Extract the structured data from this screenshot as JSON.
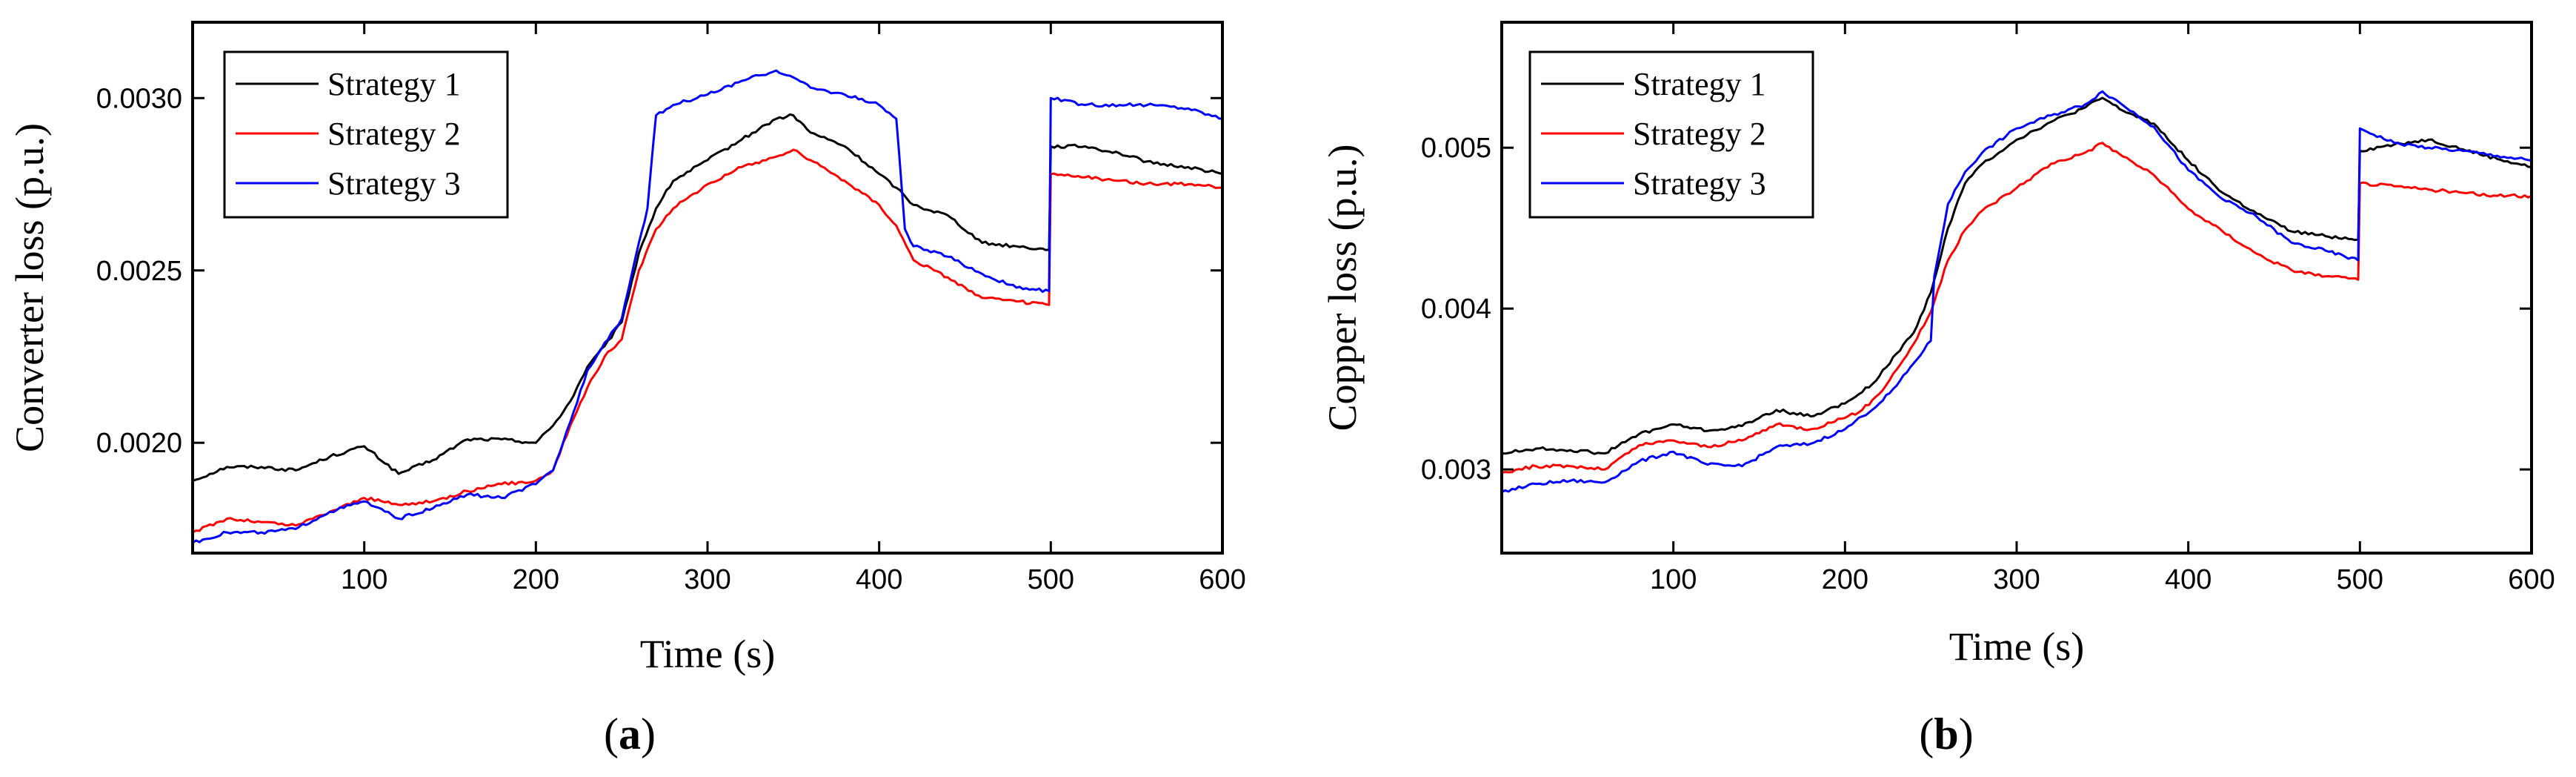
{
  "figure": {
    "panels": [
      {
        "id": "a",
        "label_open": "(",
        "label_letter": "a",
        "label_close": ")"
      },
      {
        "id": "b",
        "label_open": "(",
        "label_letter": "b",
        "label_close": ")"
      }
    ]
  },
  "chart_data": [
    {
      "type": "line",
      "panel": "a",
      "xlabel": "Time (s)",
      "ylabel": "Converter loss (p.u.)",
      "xlim": [
        0,
        600
      ],
      "ylim": [
        0.00168,
        0.00322
      ],
      "xticks": [
        100,
        200,
        300,
        400,
        500,
        600
      ],
      "xtick_labels": [
        "100",
        "200",
        "300",
        "400",
        "500",
        "600"
      ],
      "yticks": [
        0.002,
        0.0025,
        0.003
      ],
      "ytick_labels": [
        "0.0020",
        "0.0025",
        "0.0030"
      ],
      "legend_position": "top-left",
      "series": [
        {
          "name": "Strategy 1",
          "color": "#000000",
          "x": [
            0,
            20,
            40,
            60,
            80,
            100,
            120,
            140,
            160,
            180,
            200,
            210,
            220,
            230,
            240,
            250,
            260,
            270,
            280,
            300,
            320,
            340,
            350,
            360,
            380,
            400,
            410,
            420,
            440,
            460,
            480,
            499,
            500,
            520,
            540,
            560,
            580,
            600
          ],
          "y": [
            0.00189,
            0.00193,
            0.00193,
            0.00192,
            0.00196,
            0.00199,
            0.00191,
            0.00195,
            0.00201,
            0.00201,
            0.002,
            0.00205,
            0.00212,
            0.00222,
            0.00228,
            0.00235,
            0.00255,
            0.00268,
            0.00276,
            0.00282,
            0.00288,
            0.00294,
            0.00295,
            0.0029,
            0.00286,
            0.00278,
            0.00274,
            0.00269,
            0.00266,
            0.00258,
            0.00257,
            0.00256,
            0.00286,
            0.00286,
            0.00284,
            0.00281,
            0.0028,
            0.00278
          ]
        },
        {
          "name": "Strategy 2",
          "color": "#ff0000",
          "x": [
            0,
            20,
            40,
            60,
            80,
            100,
            120,
            140,
            160,
            180,
            200,
            210,
            220,
            230,
            240,
            250,
            260,
            270,
            280,
            300,
            320,
            340,
            350,
            360,
            380,
            400,
            410,
            420,
            440,
            460,
            480,
            499,
            500,
            520,
            540,
            560,
            580,
            600
          ],
          "y": [
            0.00174,
            0.00178,
            0.00177,
            0.00176,
            0.0018,
            0.00184,
            0.00182,
            0.00183,
            0.00186,
            0.00188,
            0.00189,
            0.00192,
            0.00205,
            0.00216,
            0.00225,
            0.0023,
            0.0025,
            0.00262,
            0.00268,
            0.00275,
            0.0028,
            0.00283,
            0.00285,
            0.00282,
            0.00276,
            0.00269,
            0.00263,
            0.00253,
            0.00248,
            0.00242,
            0.00241,
            0.0024,
            0.00278,
            0.00277,
            0.00276,
            0.00275,
            0.00275,
            0.00274
          ]
        },
        {
          "name": "Strategy 3",
          "color": "#0000ff",
          "x": [
            0,
            20,
            40,
            60,
            80,
            100,
            120,
            140,
            160,
            180,
            200,
            210,
            220,
            230,
            240,
            250,
            260,
            265,
            270,
            280,
            300,
            320,
            340,
            350,
            360,
            380,
            400,
            410,
            415,
            420,
            440,
            460,
            480,
            499,
            500,
            520,
            540,
            560,
            580,
            600
          ],
          "y": [
            0.00171,
            0.00174,
            0.00174,
            0.00175,
            0.0018,
            0.00183,
            0.00178,
            0.00181,
            0.00185,
            0.00184,
            0.00188,
            0.00192,
            0.00206,
            0.00221,
            0.00229,
            0.00236,
            0.00258,
            0.00268,
            0.00295,
            0.00298,
            0.00301,
            0.00305,
            0.00308,
            0.00306,
            0.00303,
            0.00301,
            0.00298,
            0.00294,
            0.00262,
            0.00257,
            0.00254,
            0.00249,
            0.00245,
            0.00244,
            0.003,
            0.00298,
            0.00298,
            0.00298,
            0.00297,
            0.00294
          ]
        }
      ]
    },
    {
      "type": "line",
      "panel": "b",
      "xlabel": "Time (s)",
      "ylabel": "Copper loss (p.u.)",
      "xlim": [
        0,
        600
      ],
      "ylim": [
        0.00248,
        0.00578
      ],
      "xticks": [
        100,
        200,
        300,
        400,
        500,
        600
      ],
      "xtick_labels": [
        "100",
        "200",
        "300",
        "400",
        "500",
        "600"
      ],
      "yticks": [
        0.003,
        0.004,
        0.005
      ],
      "ytick_labels": [
        "0.003",
        "0.004",
        "0.005"
      ],
      "legend_position": "top-left",
      "series": [
        {
          "name": "Strategy 1",
          "color": "#000000",
          "x": [
            0,
            20,
            40,
            60,
            80,
            100,
            120,
            140,
            160,
            180,
            200,
            210,
            220,
            230,
            240,
            250,
            260,
            270,
            280,
            300,
            320,
            340,
            350,
            360,
            380,
            400,
            420,
            440,
            460,
            480,
            499,
            500,
            520,
            540,
            560,
            580,
            600
          ],
          "y": [
            0.0031,
            0.00313,
            0.00312,
            0.0031,
            0.00322,
            0.00328,
            0.00324,
            0.00327,
            0.00337,
            0.00333,
            0.00341,
            0.00348,
            0.00358,
            0.00372,
            0.00385,
            0.0041,
            0.0045,
            0.00478,
            0.0049,
            0.00505,
            0.00516,
            0.00525,
            0.00531,
            0.00524,
            0.00515,
            0.00492,
            0.00472,
            0.00459,
            0.00448,
            0.00445,
            0.00443,
            0.00498,
            0.00502,
            0.00505,
            0.00499,
            0.00493,
            0.00488
          ]
        },
        {
          "name": "Strategy 2",
          "color": "#ff0000",
          "x": [
            0,
            20,
            40,
            60,
            80,
            100,
            120,
            140,
            160,
            180,
            200,
            210,
            220,
            230,
            240,
            250,
            260,
            270,
            280,
            300,
            320,
            340,
            350,
            360,
            380,
            400,
            420,
            440,
            460,
            480,
            499,
            500,
            520,
            540,
            560,
            580,
            600
          ],
          "y": [
            0.00298,
            0.00302,
            0.00302,
            0.003,
            0.00315,
            0.00318,
            0.00314,
            0.00318,
            0.00328,
            0.00325,
            0.00332,
            0.00337,
            0.00347,
            0.00362,
            0.00378,
            0.00398,
            0.0043,
            0.00449,
            0.00461,
            0.00475,
            0.0049,
            0.00497,
            0.00503,
            0.00496,
            0.00483,
            0.00462,
            0.00448,
            0.00434,
            0.00424,
            0.0042,
            0.00418,
            0.00478,
            0.00476,
            0.00474,
            0.00472,
            0.0047,
            0.0047
          ]
        },
        {
          "name": "Strategy 3",
          "color": "#0000ff",
          "x": [
            0,
            20,
            40,
            60,
            80,
            100,
            120,
            140,
            160,
            180,
            200,
            210,
            220,
            230,
            240,
            250,
            252,
            260,
            270,
            280,
            300,
            320,
            340,
            350,
            360,
            380,
            400,
            420,
            440,
            460,
            480,
            499,
            500,
            520,
            540,
            560,
            580,
            600
          ],
          "y": [
            0.00286,
            0.00291,
            0.00293,
            0.00292,
            0.00305,
            0.00311,
            0.00303,
            0.00302,
            0.00314,
            0.00316,
            0.00325,
            0.00333,
            0.00341,
            0.00352,
            0.00366,
            0.0038,
            0.0042,
            0.00465,
            0.00485,
            0.00497,
            0.00512,
            0.0052,
            0.00527,
            0.00535,
            0.00528,
            0.00513,
            0.00486,
            0.00468,
            0.00457,
            0.00441,
            0.00436,
            0.0043,
            0.00512,
            0.00503,
            0.005,
            0.00498,
            0.00495,
            0.00492
          ]
        }
      ]
    }
  ]
}
